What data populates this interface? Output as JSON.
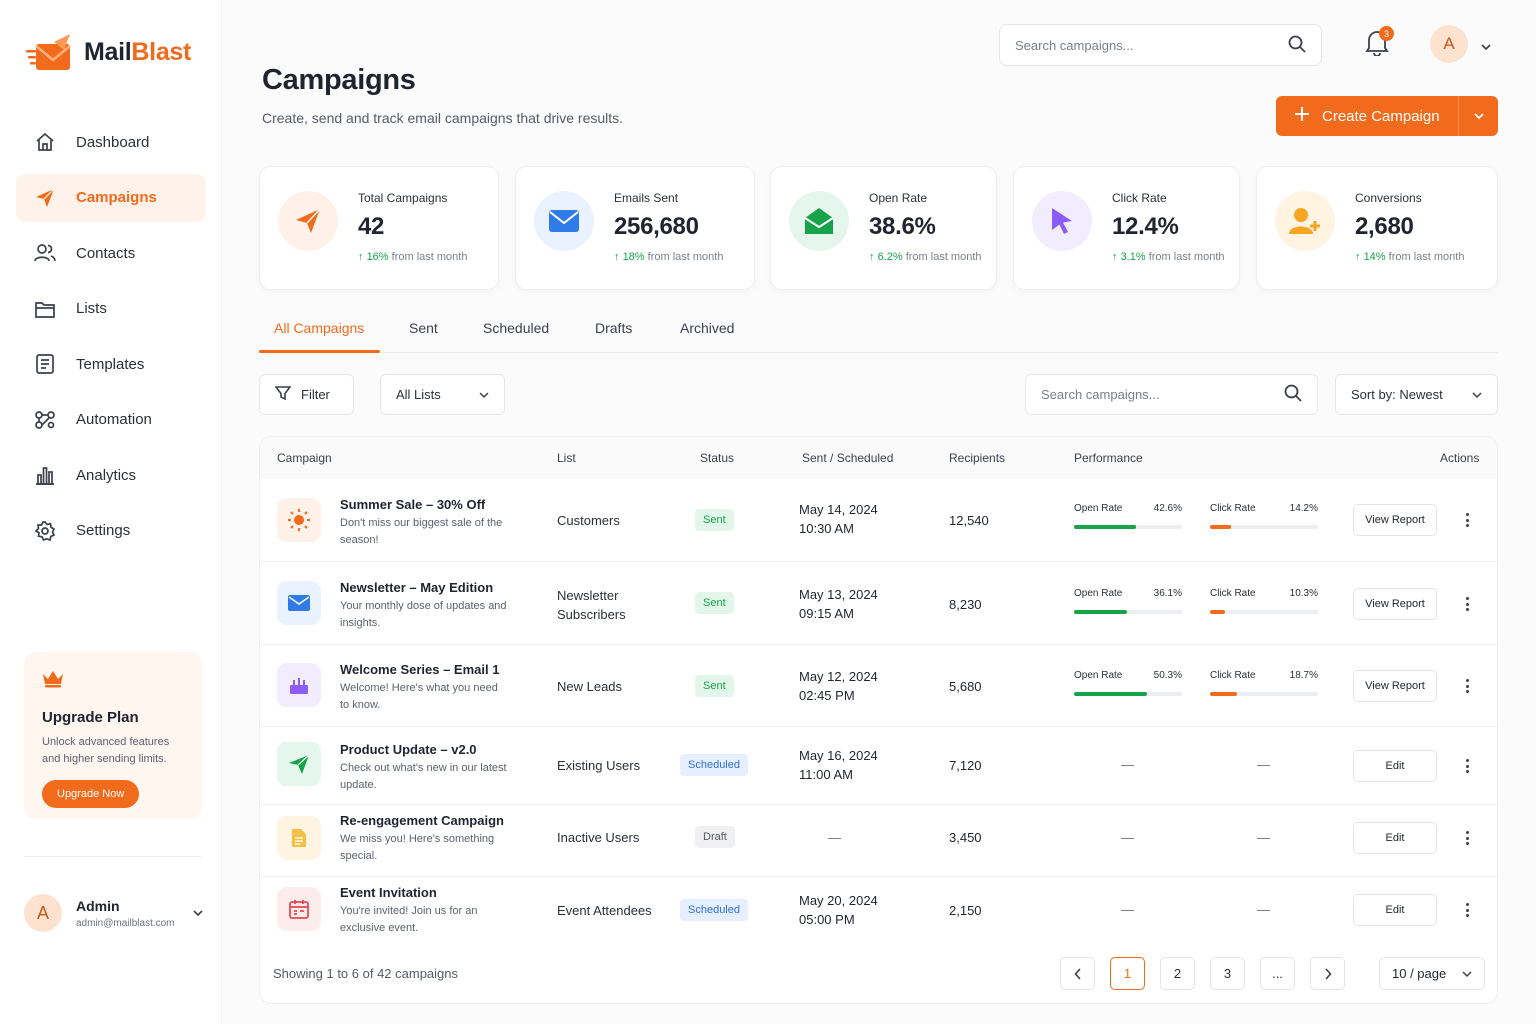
{
  "app": {
    "name_part1": "Mail",
    "name_part2": "Blast"
  },
  "sidebar": {
    "items": [
      {
        "label": "Dashboard",
        "icon": "home-icon"
      },
      {
        "label": "Campaigns",
        "icon": "paper-plane-icon",
        "active": true
      },
      {
        "label": "Contacts",
        "icon": "users-icon"
      },
      {
        "label": "Lists",
        "icon": "folder-icon"
      },
      {
        "label": "Templates",
        "icon": "document-icon"
      },
      {
        "label": "Automation",
        "icon": "automation-icon"
      },
      {
        "label": "Analytics",
        "icon": "bar-chart-icon"
      },
      {
        "label": "Settings",
        "icon": "gear-icon"
      }
    ],
    "upgrade": {
      "title": "Upgrade Plan",
      "desc": "Unlock advanced features and higher sending limits.",
      "button": "Upgrade Now"
    },
    "user": {
      "initial": "A",
      "name": "Admin",
      "email": "admin@mailblast.com"
    }
  },
  "header": {
    "search_placeholder": "Search campaigns...",
    "notifications": "3",
    "avatar_initial": "A",
    "title": "Campaigns",
    "subtitle": "Create, send and track email campaigns that drive results.",
    "create_label": "Create Campaign"
  },
  "stats": [
    {
      "label": "Total Campaigns",
      "value": "42",
      "change": "16%",
      "suffix": "from last month",
      "color": "#f26a1b",
      "bg": "#fff1e8"
    },
    {
      "label": "Emails Sent",
      "value": "256,680",
      "change": "18%",
      "suffix": "from last month",
      "color": "#2f7be8",
      "bg": "#e9f2fe"
    },
    {
      "label": "Open Rate",
      "value": "38.6%",
      "change": "6.2%",
      "suffix": "from last month",
      "color": "#16a34a",
      "bg": "#e5f6ec"
    },
    {
      "label": "Click Rate",
      "value": "12.4%",
      "change": "3.1%",
      "suffix": "from last month",
      "color": "#8b5cf6",
      "bg": "#f1ecfe"
    },
    {
      "label": "Conversions",
      "value": "2,680",
      "change": "14%",
      "suffix": "from last month",
      "color": "#f5a623",
      "bg": "#fff4e2"
    }
  ],
  "tabs": [
    "All Campaigns",
    "Sent",
    "Scheduled",
    "Drafts",
    "Archived"
  ],
  "filters": {
    "filter_label": "Filter",
    "lists_label": "All Lists",
    "search_placeholder": "Search campaigns...",
    "sort_label": "Sort by: Newest"
  },
  "table": {
    "columns": [
      "Campaign",
      "List",
      "Status",
      "Sent / Scheduled",
      "Recipients",
      "Performance",
      "Actions"
    ],
    "rows": [
      {
        "name": "Summer Sale – 30% Off",
        "desc": "Don't miss our biggest sale of the season!",
        "list": "Customers",
        "status": "Sent",
        "date1": "May 14, 2024",
        "date2": "10:30 AM",
        "recipients": "12,540",
        "open_label": "Open Rate",
        "open": "42.6%",
        "open_v": 42.6,
        "click_label": "Click Rate",
        "click": "14.2%",
        "click_v": 14.2,
        "action": "View Report",
        "icon": "sun-icon"
      },
      {
        "name": "Newsletter – May Edition",
        "desc": "Your monthly dose of updates and insights.",
        "list": "Newsletter Subscribers",
        "status": "Sent",
        "date1": "May 13, 2024",
        "date2": "09:15 AM",
        "recipients": "8,230",
        "open_label": "Open Rate",
        "open": "36.1%",
        "open_v": 36.1,
        "click_label": "Click Rate",
        "click": "10.3%",
        "click_v": 10.3,
        "action": "View Report",
        "icon": "envelope-icon"
      },
      {
        "name": "Welcome Series – Email 1",
        "desc": "Welcome! Here's what you need to know.",
        "list": "New Leads",
        "status": "Sent",
        "date1": "May 12, 2024",
        "date2": "02:45 PM",
        "recipients": "5,680",
        "open_label": "Open Rate",
        "open": "50.3%",
        "open_v": 50.3,
        "click_label": "Click Rate",
        "click": "18.7%",
        "click_v": 18.7,
        "action": "View Report",
        "icon": "cake-icon"
      },
      {
        "name": "Product Update – v2.0",
        "desc": "Check out what's new in our latest update.",
        "list": "Existing Users",
        "status": "Scheduled",
        "date1": "May 16, 2024",
        "date2": "11:00 AM",
        "recipients": "7,120",
        "action": "Edit",
        "icon": "paper-plane-icon"
      },
      {
        "name": "Re-engagement Campaign",
        "desc": "We miss you! Here's something special.",
        "list": "Inactive Users",
        "status": "Draft",
        "date1": "—",
        "date2": "",
        "recipients": "3,450",
        "action": "Edit",
        "icon": "document-icon"
      },
      {
        "name": "Event Invitation",
        "desc": "You're invited! Join us for an exclusive event.",
        "list": "Event Attendees",
        "status": "Scheduled",
        "date1": "May 20, 2024",
        "date2": "05:00 PM",
        "recipients": "2,150",
        "action": "Edit",
        "icon": "calendar-icon"
      }
    ]
  },
  "pagination": {
    "showing": "Showing 1 to 6 of 42 campaigns",
    "pages": [
      "1",
      "2",
      "3",
      "..."
    ],
    "per_page": "10 / page"
  },
  "empty_dash": "—"
}
